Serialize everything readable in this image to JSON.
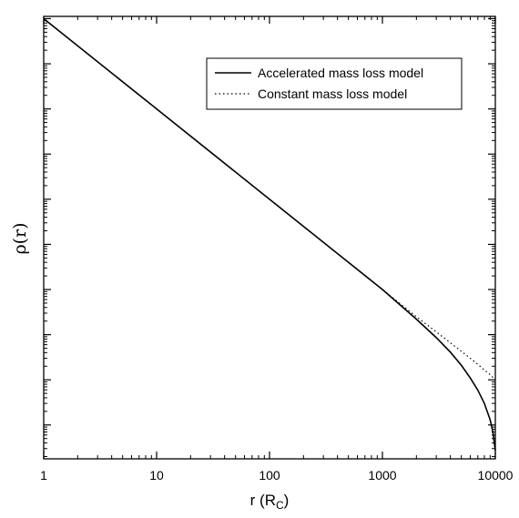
{
  "chart_data": {
    "type": "line",
    "xlabel": "r (R",
    "xlabel_sub": "C",
    "xlabel_close": ")",
    "ylabel": "ρ(r)",
    "xscale": "log",
    "yscale": "log",
    "xlim": [
      1,
      10000
    ],
    "x_ticks": [
      "1",
      "10",
      "100",
      "1000",
      "10000"
    ],
    "y_tick_labels_shown": false,
    "grid": false,
    "legend_position": "top-right",
    "series": [
      {
        "name": "Accelerated mass loss model",
        "style": "solid",
        "x": [
          1,
          10,
          100,
          1000,
          2000,
          3000,
          4000,
          5000,
          6000,
          7000,
          8000,
          9000,
          9500,
          10000
        ],
        "y": [
          1,
          0.01,
          0.0001,
          1e-06,
          2.2e-07,
          8.6e-08,
          4.1e-08,
          2.1e-08,
          1.1e-08,
          5.9e-09,
          3e-09,
          1.3e-09,
          7.1e-10,
          2.7e-10
        ]
      },
      {
        "name": "Constant mass loss model",
        "style": "dotted",
        "x": [
          1,
          10,
          100,
          1000,
          2000,
          3000,
          4000,
          5000,
          6000,
          7000,
          8000,
          9000,
          10000
        ],
        "y": [
          1,
          0.01,
          0.0001,
          1e-06,
          2.5e-07,
          1.15e-07,
          6.6e-08,
          4.3e-08,
          3e-08,
          2.2e-08,
          1.65e-08,
          1.3e-08,
          1e-08
        ]
      }
    ]
  }
}
